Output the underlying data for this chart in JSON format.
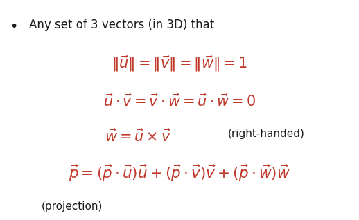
{
  "background_color": "#ffffff",
  "bullet_char": "•",
  "bullet_text": "Any set of 3 vectors (in 3D) that",
  "eq1": "$\\|\\vec{u}\\| = \\|\\vec{v}\\| = \\|\\vec{w}\\| = 1$",
  "eq2": "$\\vec{u} \\cdot \\vec{v} = \\vec{v} \\cdot \\vec{w} = \\vec{u} \\cdot \\vec{w} = 0$",
  "eq3_left": "$\\vec{w} = \\vec{u} \\times \\vec{v}$",
  "eq3_right": "(right-handed)",
  "eq4": "$\\vec{p} = (\\vec{p} \\cdot \\vec{u})\\vec{u} + (\\vec{p} \\cdot \\vec{v})\\vec{v} + (\\vec{p} \\cdot \\vec{w})\\vec{w}$",
  "eq4_sub": "(projection)",
  "bullet_fontsize": 12,
  "eq_fontsize": 15,
  "eq4_fontsize": 15.5,
  "sub_fontsize": 11,
  "eq_color": "#c0392b",
  "text_color": "#1a1a1a",
  "figsize": [
    5.18,
    3.18
  ],
  "dpi": 100
}
